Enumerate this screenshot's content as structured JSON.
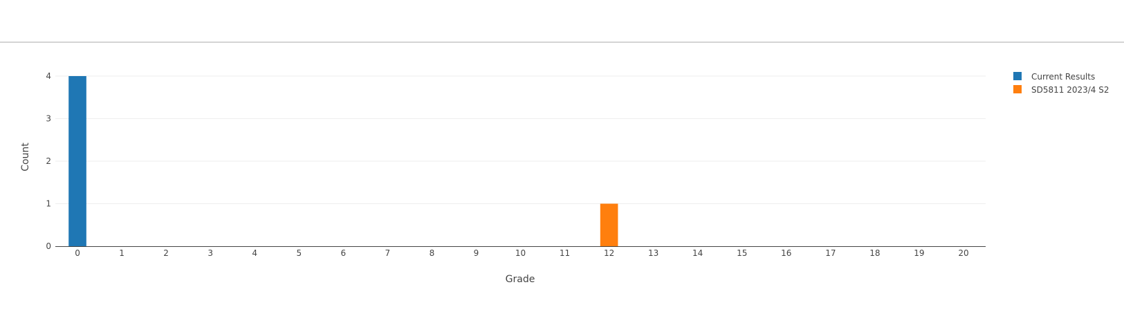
{
  "chart_data": {
    "type": "bar",
    "title": "",
    "xlabel": "Grade",
    "ylabel": "Count",
    "categories": [
      "0",
      "1",
      "2",
      "3",
      "4",
      "5",
      "6",
      "7",
      "8",
      "9",
      "10",
      "11",
      "12",
      "13",
      "14",
      "15",
      "16",
      "17",
      "18",
      "19",
      "20"
    ],
    "ylim": [
      0,
      4
    ],
    "yticks": [
      "0",
      "1",
      "2",
      "3",
      "4"
    ],
    "grid": true,
    "legend_position": "top-right",
    "series": [
      {
        "name": "Current Results",
        "color": "#1f77b4",
        "values": [
          4,
          0,
          0,
          0,
          0,
          0,
          0,
          0,
          0,
          0,
          0,
          0,
          0,
          0,
          0,
          0,
          0,
          0,
          0,
          0,
          0
        ]
      },
      {
        "name": "SD5811 2023/4 S2",
        "color": "#ff7f0e",
        "values": [
          0,
          0,
          0,
          0,
          0,
          0,
          0,
          0,
          0,
          0,
          0,
          0,
          1,
          0,
          0,
          0,
          0,
          0,
          0,
          0,
          0
        ]
      }
    ]
  }
}
